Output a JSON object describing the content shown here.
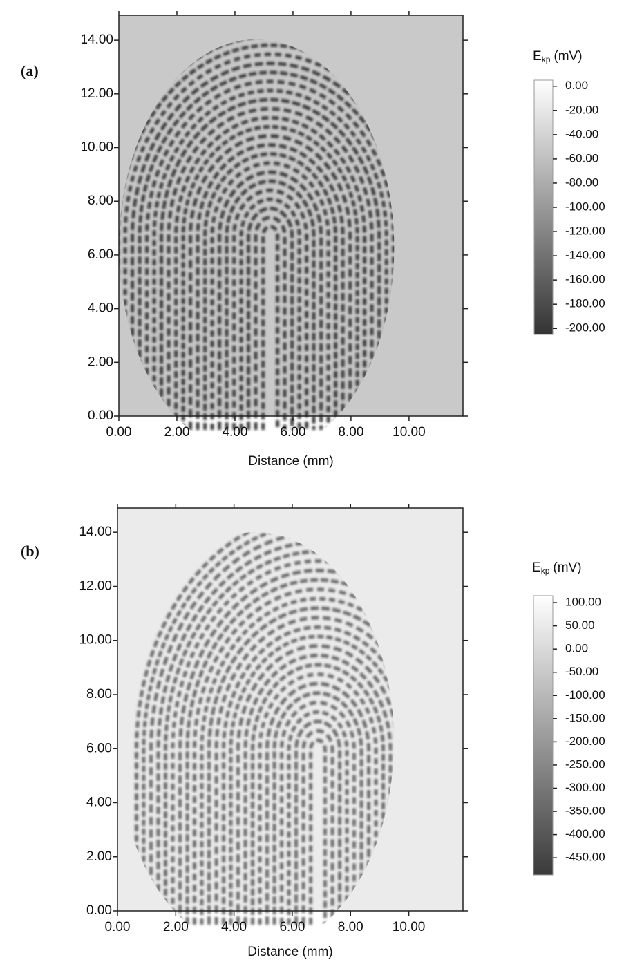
{
  "chart_data": [
    {
      "type": "heatmap",
      "panel_label": "(a)",
      "xlabel": "Distance (mm)",
      "colorbar_label": {
        "symbol": "E",
        "subscript": "kp",
        "unit": "(mV)"
      },
      "xlim": [
        0,
        11.86
      ],
      "ylim": [
        0,
        14.93
      ],
      "xticks": [
        {
          "value": 0,
          "label": "0.00"
        },
        {
          "value": 2,
          "label": "2.00"
        },
        {
          "value": 4,
          "label": "4.00"
        },
        {
          "value": 6,
          "label": "6.00"
        },
        {
          "value": 8,
          "label": "8.00"
        },
        {
          "value": 10,
          "label": "10.00"
        }
      ],
      "yticks": [
        {
          "value": 0,
          "label": "0.00"
        },
        {
          "value": 2,
          "label": "2.00"
        },
        {
          "value": 4,
          "label": "4.00"
        },
        {
          "value": 6,
          "label": "6.00"
        },
        {
          "value": 8,
          "label": "8.00"
        },
        {
          "value": 10,
          "label": "10.00"
        },
        {
          "value": 12,
          "label": "12.00"
        },
        {
          "value": 14,
          "label": "14.00"
        }
      ],
      "zlim": [
        -205,
        5
      ],
      "zticks": [
        {
          "value": 0,
          "label": "0.00"
        },
        {
          "value": -20,
          "label": "-20.00"
        },
        {
          "value": -40,
          "label": "-40.00"
        },
        {
          "value": -60,
          "label": "-60.00"
        },
        {
          "value": -80,
          "label": "-80.00"
        },
        {
          "value": -100,
          "label": "-100.00"
        },
        {
          "value": -120,
          "label": "-120.00"
        },
        {
          "value": -140,
          "label": "-140.00"
        },
        {
          "value": -160,
          "label": "-160.00"
        },
        {
          "value": -180,
          "label": "-180.00"
        },
        {
          "value": -200,
          "label": "-200.00"
        }
      ],
      "colormap": [
        "#333333",
        "#ffffff"
      ]
    },
    {
      "type": "heatmap",
      "panel_label": "(b)",
      "xlabel": "Distance (mm)",
      "colorbar_label": {
        "symbol": "E",
        "subscript": "kp",
        "unit": "(mV)"
      },
      "xlim": [
        0,
        11.86
      ],
      "ylim": [
        0,
        14.9
      ],
      "xticks": [
        {
          "value": 0,
          "label": "0.00"
        },
        {
          "value": 2,
          "label": "2.00"
        },
        {
          "value": 4,
          "label": "4.00"
        },
        {
          "value": 6,
          "label": "6.00"
        },
        {
          "value": 8,
          "label": "8.00"
        },
        {
          "value": 10,
          "label": "10.00"
        }
      ],
      "yticks": [
        {
          "value": 0,
          "label": "0.00"
        },
        {
          "value": 2,
          "label": "2.00"
        },
        {
          "value": 4,
          "label": "4.00"
        },
        {
          "value": 6,
          "label": "6.00"
        },
        {
          "value": 8,
          "label": "8.00"
        },
        {
          "value": 10,
          "label": "10.00"
        },
        {
          "value": 12,
          "label": "12.00"
        },
        {
          "value": 14,
          "label": "14.00"
        }
      ],
      "zlim": [
        -487,
        115
      ],
      "zticks": [
        {
          "value": 100,
          "label": "100.00"
        },
        {
          "value": 50,
          "label": "50.00"
        },
        {
          "value": 0,
          "label": "0.00"
        },
        {
          "value": -50,
          "label": "-50.00"
        },
        {
          "value": -100,
          "label": "-100.00"
        },
        {
          "value": -150,
          "label": "-150.00"
        },
        {
          "value": -200,
          "label": "-200.00"
        },
        {
          "value": -250,
          "label": "-250.00"
        },
        {
          "value": -300,
          "label": "-300.00"
        },
        {
          "value": -350,
          "label": "-350.00"
        },
        {
          "value": -400,
          "label": "-400.00"
        },
        {
          "value": -450,
          "label": "-450.00"
        }
      ],
      "colormap": [
        "#3a3a3a",
        "#ffffff"
      ]
    }
  ]
}
